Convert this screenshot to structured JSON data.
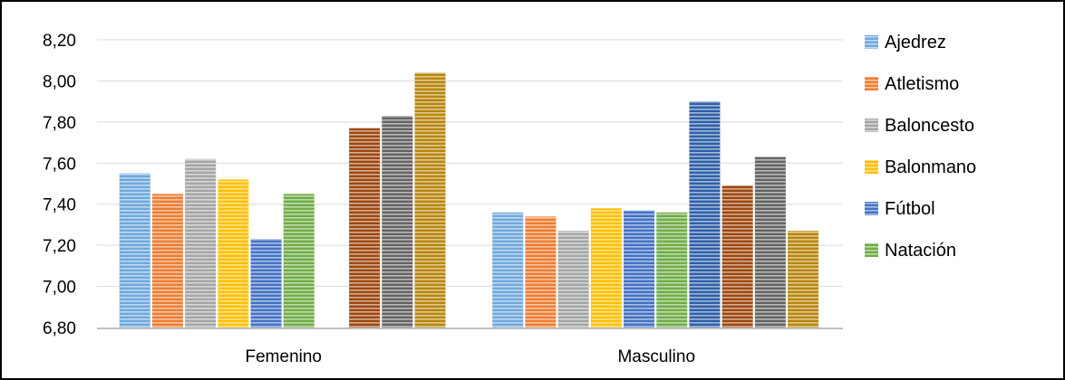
{
  "chart_data": {
    "type": "bar",
    "categories": [
      "Femenino",
      "Masculino"
    ],
    "y_ticks": [
      "6,80",
      "7,00",
      "7,20",
      "7,40",
      "7,60",
      "7,80",
      "8,00",
      "8,20"
    ],
    "ylim": [
      6.8,
      8.2
    ],
    "grid": true,
    "legend_position": "right",
    "legend": [
      {
        "name": "Ajedrez",
        "color": "#6FA8DC"
      },
      {
        "name": "Atletismo",
        "color": "#ED7D31"
      },
      {
        "name": "Baloncesto",
        "color": "#A5A5A5"
      },
      {
        "name": "Balonmano",
        "color": "#FFC000"
      },
      {
        "name": "Fútbol",
        "color": "#4472C4"
      },
      {
        "name": "Natación",
        "color": "#70AD47"
      }
    ],
    "bars": [
      {
        "category": "Femenino",
        "value": 7.55,
        "color": "#6FA8DC"
      },
      {
        "category": "Femenino",
        "value": 7.45,
        "color": "#ED7D31"
      },
      {
        "category": "Femenino",
        "value": 7.62,
        "color": "#A5A5A5"
      },
      {
        "category": "Femenino",
        "value": 7.52,
        "color": "#FFC000"
      },
      {
        "category": "Femenino",
        "value": 7.23,
        "color": "#4472C4"
      },
      {
        "category": "Femenino",
        "value": 7.45,
        "color": "#70AD47"
      },
      {
        "category": "Femenino",
        "value": null,
        "color": "#264478"
      },
      {
        "category": "Femenino",
        "value": 7.77,
        "color": "#9E480E"
      },
      {
        "category": "Femenino",
        "value": 7.83,
        "color": "#636363"
      },
      {
        "category": "Femenino",
        "value": 8.04,
        "color": "#B8860B"
      },
      {
        "category": "Masculino",
        "value": 7.36,
        "color": "#6FA8DC"
      },
      {
        "category": "Masculino",
        "value": 7.34,
        "color": "#ED7D31"
      },
      {
        "category": "Masculino",
        "value": 7.27,
        "color": "#A5A5A5"
      },
      {
        "category": "Masculino",
        "value": 7.38,
        "color": "#FFC000"
      },
      {
        "category": "Masculino",
        "value": 7.37,
        "color": "#4472C4"
      },
      {
        "category": "Masculino",
        "value": 7.36,
        "color": "#70AD47"
      },
      {
        "category": "Masculino",
        "value": 7.9,
        "color": "#2E5FA8"
      },
      {
        "category": "Masculino",
        "value": 7.49,
        "color": "#9E480E"
      },
      {
        "category": "Masculino",
        "value": 7.63,
        "color": "#636363"
      },
      {
        "category": "Masculino",
        "value": 7.27,
        "color": "#B8860B"
      }
    ]
  }
}
